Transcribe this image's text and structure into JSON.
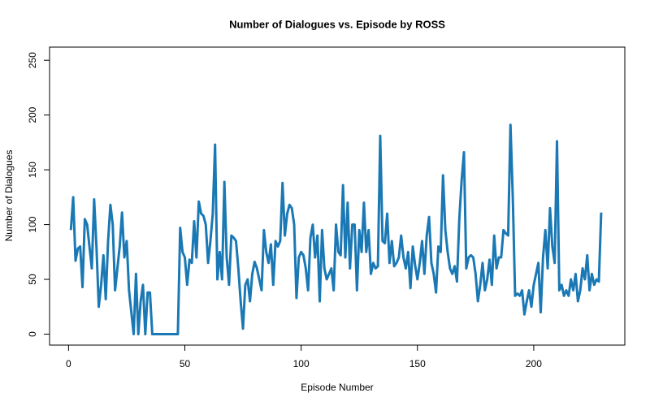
{
  "chart_data": {
    "type": "line",
    "title": "Number of Dialogues vs. Episode by ROSS",
    "x_label": "Episode Number",
    "y_label": "Number of Dialogues",
    "x": [
      1,
      2,
      3,
      4,
      5,
      6,
      7,
      8,
      9,
      10,
      11,
      12,
      13,
      14,
      15,
      16,
      17,
      18,
      19,
      20,
      21,
      22,
      23,
      24,
      25,
      26,
      27,
      28,
      29,
      30,
      31,
      32,
      33,
      34,
      35,
      36,
      37,
      38,
      39,
      40,
      41,
      42,
      43,
      44,
      45,
      46,
      47,
      48,
      49,
      50,
      51,
      52,
      53,
      54,
      55,
      56,
      57,
      58,
      59,
      60,
      61,
      62,
      63,
      64,
      65,
      66,
      67,
      68,
      69,
      70,
      71,
      72,
      73,
      74,
      75,
      76,
      77,
      78,
      79,
      80,
      81,
      82,
      83,
      84,
      85,
      86,
      87,
      88,
      89,
      90,
      91,
      92,
      93,
      94,
      95,
      96,
      97,
      98,
      99,
      100,
      101,
      102,
      103,
      104,
      105,
      106,
      107,
      108,
      109,
      110,
      111,
      112,
      113,
      114,
      115,
      116,
      117,
      118,
      119,
      120,
      121,
      122,
      123,
      124,
      125,
      126,
      127,
      128,
      129,
      130,
      131,
      132,
      133,
      134,
      135,
      136,
      137,
      138,
      139,
      140,
      141,
      142,
      143,
      144,
      145,
      146,
      147,
      148,
      149,
      150,
      151,
      152,
      153,
      154,
      155,
      156,
      157,
      158,
      159,
      160,
      161,
      162,
      163,
      164,
      165,
      166,
      167,
      168,
      169,
      170,
      171,
      172,
      173,
      174,
      175,
      176,
      177,
      178,
      179,
      180,
      181,
      182,
      183,
      184,
      185,
      186,
      187,
      188,
      189,
      190,
      191,
      192,
      193,
      194,
      195,
      196,
      197,
      198,
      199,
      200,
      201,
      202,
      203,
      204,
      205,
      206,
      207,
      208,
      209,
      210,
      211,
      212,
      213,
      214,
      215,
      216,
      217,
      218,
      219,
      220,
      221,
      222,
      223,
      224,
      225,
      226,
      227,
      228,
      229
    ],
    "series": [
      {
        "color": "#1a78b4",
        "values": [
          95,
          125,
          67,
          78,
          80,
          43,
          105,
          100,
          80,
          60,
          123,
          80,
          25,
          45,
          72,
          32,
          85,
          118,
          100,
          40,
          60,
          80,
          111,
          70,
          85,
          40,
          20,
          0,
          55,
          0,
          30,
          45,
          0,
          38,
          38,
          0,
          0,
          0,
          0,
          0,
          0,
          0,
          0,
          0,
          0,
          0,
          0,
          97,
          75,
          70,
          45,
          68,
          65,
          103,
          70,
          121,
          110,
          108,
          100,
          65,
          85,
          110,
          173,
          50,
          75,
          50,
          139,
          70,
          45,
          90,
          88,
          85,
          60,
          30,
          5,
          45,
          50,
          30,
          55,
          66,
          60,
          50,
          40,
          95,
          75,
          65,
          82,
          45,
          85,
          80,
          85,
          138,
          90,
          110,
          118,
          115,
          100,
          33,
          70,
          75,
          72,
          60,
          40,
          88,
          100,
          70,
          90,
          30,
          95,
          60,
          50,
          55,
          60,
          40,
          100,
          75,
          72,
          136,
          70,
          120,
          60,
          100,
          100,
          40,
          95,
          75,
          120,
          75,
          95,
          55,
          65,
          60,
          62,
          181,
          85,
          83,
          110,
          65,
          85,
          62,
          65,
          70,
          90,
          70,
          60,
          75,
          42,
          80,
          63,
          50,
          65,
          85,
          55,
          90,
          107,
          65,
          55,
          38,
          80,
          75,
          145,
          95,
          75,
          60,
          55,
          62,
          48,
          105,
          140,
          166,
          60,
          70,
          72,
          70,
          55,
          30,
          45,
          65,
          40,
          50,
          68,
          45,
          90,
          60,
          70,
          70,
          95,
          92,
          90,
          191,
          125,
          35,
          37,
          35,
          40,
          18,
          30,
          40,
          25,
          45,
          55,
          65,
          20,
          70,
          95,
          60,
          115,
          80,
          65,
          176,
          40,
          45,
          35,
          40,
          35,
          50,
          40,
          55,
          30,
          40,
          60,
          50,
          72,
          40,
          55,
          45,
          50,
          48,
          111
        ]
      }
    ],
    "xlim": [
      -8.16,
      239.16
    ],
    "ylim": [
      -10,
      262
    ],
    "xticks": [
      0,
      50,
      100,
      150,
      200
    ],
    "yticks": [
      0,
      50,
      100,
      150,
      200,
      250
    ]
  }
}
